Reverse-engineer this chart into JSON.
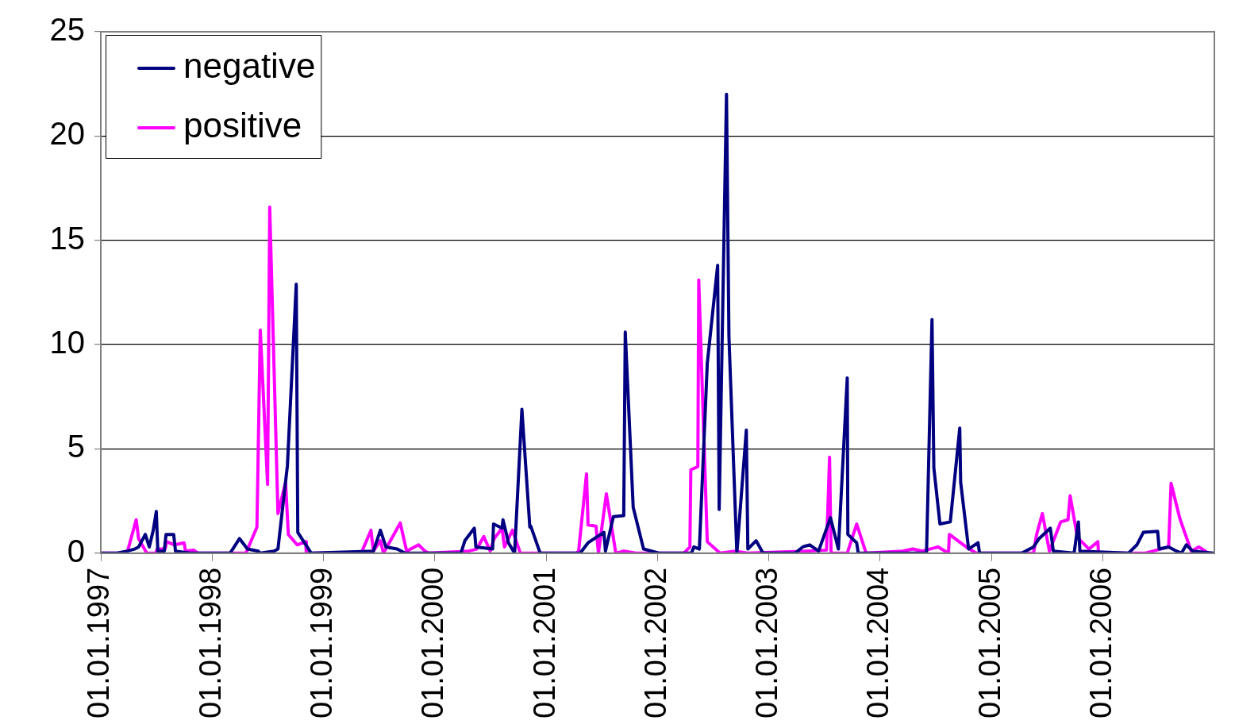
{
  "chart_data": {
    "type": "line",
    "xlim": [
      "1997-01-01",
      "2007-01-01"
    ],
    "xticks": [
      {
        "value": "1997-01-01",
        "label": "01.01.1997"
      },
      {
        "value": "1998-01-01",
        "label": "01.01.1998"
      },
      {
        "value": "1999-01-01",
        "label": "01.01.1999"
      },
      {
        "value": "2000-01-01",
        "label": "01.01.2000"
      },
      {
        "value": "2001-01-01",
        "label": "01.01.2001"
      },
      {
        "value": "2002-01-01",
        "label": "01.01.2002"
      },
      {
        "value": "2003-01-01",
        "label": "01.01.2003"
      },
      {
        "value": "2004-01-01",
        "label": "01.01.2004"
      },
      {
        "value": "2005-01-01",
        "label": "01.01.2005"
      },
      {
        "value": "2006-01-01",
        "label": "01.01.2006"
      }
    ],
    "ylim": [
      0,
      25
    ],
    "yticks": [
      0,
      5,
      10,
      15,
      20,
      25
    ],
    "grid": "y",
    "legend": "top left",
    "marker": "none",
    "line_style": "solid",
    "series": [
      {
        "name": "negative",
        "color": "#000080",
        "x": [
          "1997-01-01",
          "1997-02-24",
          "1997-03-28",
          "1997-04-22",
          "1997-05-05",
          "1997-05-27",
          "1997-06-09",
          "1997-06-22",
          "1997-07-02",
          "1997-07-07",
          "1997-07-28",
          "1997-08-03",
          "1997-08-28",
          "1997-09-03",
          "1997-10-22",
          "1998-03-01",
          "1998-04-01",
          "1998-04-27",
          "1998-06-01",
          "1998-06-08",
          "1998-07-23",
          "1998-08-05",
          "1998-09-05",
          "1998-10-04",
          "1998-10-09",
          "1998-11-09",
          "1998-11-22",
          "1999-06-14",
          "1999-07-07",
          "1999-07-25",
          "1999-08-31",
          "1999-09-26",
          "2000-03-27",
          "2000-04-09",
          "2000-05-10",
          "2000-05-15",
          "2000-07-09",
          "2000-07-12",
          "2000-08-09",
          "2000-08-12",
          "2000-08-30",
          "2000-09-19",
          "2000-10-13",
          "2000-11-08",
          "2000-11-11",
          "2000-12-12",
          "2001-04-22",
          "2001-05-18",
          "2001-07-09",
          "2001-07-14",
          "2001-08-09",
          "2001-09-12",
          "2001-09-17",
          "2001-10-13",
          "2001-11-16",
          "2002-01-08",
          "2002-04-22",
          "2002-04-30",
          "2002-05-18",
          "2002-06-13",
          "2002-07-17",
          "2002-07-22",
          "2002-08-15",
          "2002-08-23",
          "2002-09-18",
          "2002-10-19",
          "2002-10-24",
          "2002-11-20",
          "2002-12-13",
          "2003-03-28",
          "2003-04-22",
          "2003-05-15",
          "2003-06-13",
          "2003-07-22",
          "2003-08-17",
          "2003-09-15",
          "2003-09-17",
          "2003-10-16",
          "2003-10-21",
          "2004-06-01",
          "2004-06-19",
          "2004-06-25",
          "2004-07-15",
          "2004-08-18",
          "2004-09-18",
          "2004-09-21",
          "2004-10-17",
          "2004-11-17",
          "2004-11-22",
          "2005-04-09",
          "2005-05-18",
          "2005-06-05",
          "2005-07-12",
          "2005-07-22",
          "2005-09-28",
          "2005-10-12",
          "2005-10-17",
          "2006-03-25",
          "2006-04-22",
          "2006-05-13",
          "2006-06-29",
          "2006-07-04",
          "2006-08-04",
          "2006-08-30",
          "2006-09-15",
          "2006-10-01",
          "2006-10-22",
          "2006-12-29"
        ],
        "values": [
          0,
          0,
          0.1,
          0.2,
          0.3,
          0.9,
          0.3,
          1.1,
          2.0,
          0.1,
          0.1,
          0.9,
          0.9,
          0.1,
          0,
          0,
          0.7,
          0.2,
          0.1,
          0,
          0.1,
          0.2,
          4.2,
          12.9,
          1.0,
          0.3,
          0,
          0.1,
          1.1,
          0.3,
          0.2,
          0,
          0,
          0.6,
          1.2,
          0.3,
          0.2,
          1.4,
          1.2,
          1.6,
          0.5,
          0,
          6.9,
          1.25,
          1.3,
          0,
          0,
          0.5,
          1.0,
          0.1,
          1.75,
          1.8,
          10.6,
          2.2,
          0.2,
          0,
          0,
          0.3,
          0.2,
          9.1,
          13.8,
          2.1,
          22.0,
          10.4,
          0,
          5.9,
          0.2,
          0.6,
          0,
          0,
          0.3,
          0.4,
          0.1,
          1.7,
          0.2,
          8.4,
          0.9,
          0.5,
          0,
          0,
          11.2,
          4.1,
          1.4,
          1.5,
          6.0,
          3.4,
          0.2,
          0.5,
          0,
          0,
          0.3,
          0.7,
          1.2,
          0.1,
          0,
          1.5,
          0.1,
          0,
          0.4,
          1.0,
          1.05,
          0.2,
          0.3,
          0.1,
          0,
          0.4,
          0.1,
          0
        ]
      },
      {
        "name": "positive",
        "color": "#ff00ff",
        "x": [
          "1997-01-01",
          "1997-03-28",
          "1997-04-27",
          "1997-05-05",
          "1997-06-01",
          "1997-06-30",
          "1997-07-05",
          "1997-07-31",
          "1997-08-05",
          "1997-08-31",
          "1997-10-01",
          "1997-10-06",
          "1997-11-01",
          "1997-11-16",
          "1998-04-22",
          "1998-05-28",
          "1998-06-08",
          "1998-07-02",
          "1998-07-09",
          "1998-08-05",
          "1998-08-30",
          "1998-09-08",
          "1998-10-07",
          "1998-11-04",
          "1998-11-06",
          "1999-05-05",
          "1999-06-06",
          "1999-06-14",
          "1999-07-07",
          "1999-07-17",
          "1999-08-05",
          "1999-09-10",
          "1999-10-01",
          "1999-11-09",
          "1999-11-30",
          "1999-12-13",
          "2000-04-22",
          "2000-05-18",
          "2000-06-10",
          "2000-07-01",
          "2000-07-14",
          "2000-08-09",
          "2000-08-17",
          "2000-09-12",
          "2000-10-08",
          "2001-04-09",
          "2001-04-17",
          "2001-05-13",
          "2001-05-18",
          "2001-06-13",
          "2001-06-21",
          "2001-07-17",
          "2001-08-17",
          "2001-09-12",
          "2001-10-22",
          "2002-03-28",
          "2002-04-17",
          "2002-04-20",
          "2002-05-13",
          "2002-05-16",
          "2002-06-13",
          "2002-07-25",
          "2002-09-13",
          "2002-10-22",
          "2003-05-05",
          "2003-07-09",
          "2003-07-19",
          "2003-07-24",
          "2003-09-15",
          "2003-10-16",
          "2003-11-16",
          "2004-03-14",
          "2004-04-17",
          "2004-05-18",
          "2004-07-09",
          "2004-08-12",
          "2004-08-15",
          "2004-10-09",
          "2004-11-11",
          "2005-05-18",
          "2005-05-28",
          "2005-06-16",
          "2005-07-09",
          "2005-08-15",
          "2005-09-08",
          "2005-09-15",
          "2005-10-09",
          "2005-11-16",
          "2005-12-15",
          "2005-12-17",
          "2006-05-18",
          "2006-08-04",
          "2006-08-12",
          "2006-09-10",
          "2006-10-17",
          "2006-11-11",
          "2006-12-13"
        ],
        "values": [
          0,
          0,
          1.6,
          0.7,
          0,
          0,
          0.2,
          0.2,
          0.55,
          0.4,
          0.5,
          0.1,
          0.15,
          0,
          0,
          1.25,
          10.7,
          3.3,
          16.6,
          1.9,
          3.4,
          0.9,
          0.4,
          0.55,
          0,
          0,
          1.1,
          0.1,
          0.6,
          0,
          0.5,
          1.45,
          0.1,
          0.4,
          0.1,
          0,
          0.1,
          0.2,
          0.8,
          0.1,
          0.7,
          1.2,
          0.3,
          1.1,
          0,
          0,
          0.1,
          3.8,
          1.35,
          1.3,
          0,
          2.85,
          0,
          0.1,
          0,
          0,
          0.3,
          4.0,
          4.15,
          13.1,
          0.55,
          0,
          0.1,
          0,
          0.1,
          0.15,
          4.6,
          0,
          0,
          1.4,
          0,
          0.1,
          0.2,
          0.1,
          0.3,
          0,
          0.9,
          0.3,
          0,
          0,
          0.9,
          1.9,
          0.1,
          1.5,
          1.6,
          2.75,
          0.75,
          0.2,
          0.55,
          0,
          0,
          0.3,
          3.35,
          1.65,
          0.1,
          0.3,
          0
        ]
      }
    ]
  }
}
